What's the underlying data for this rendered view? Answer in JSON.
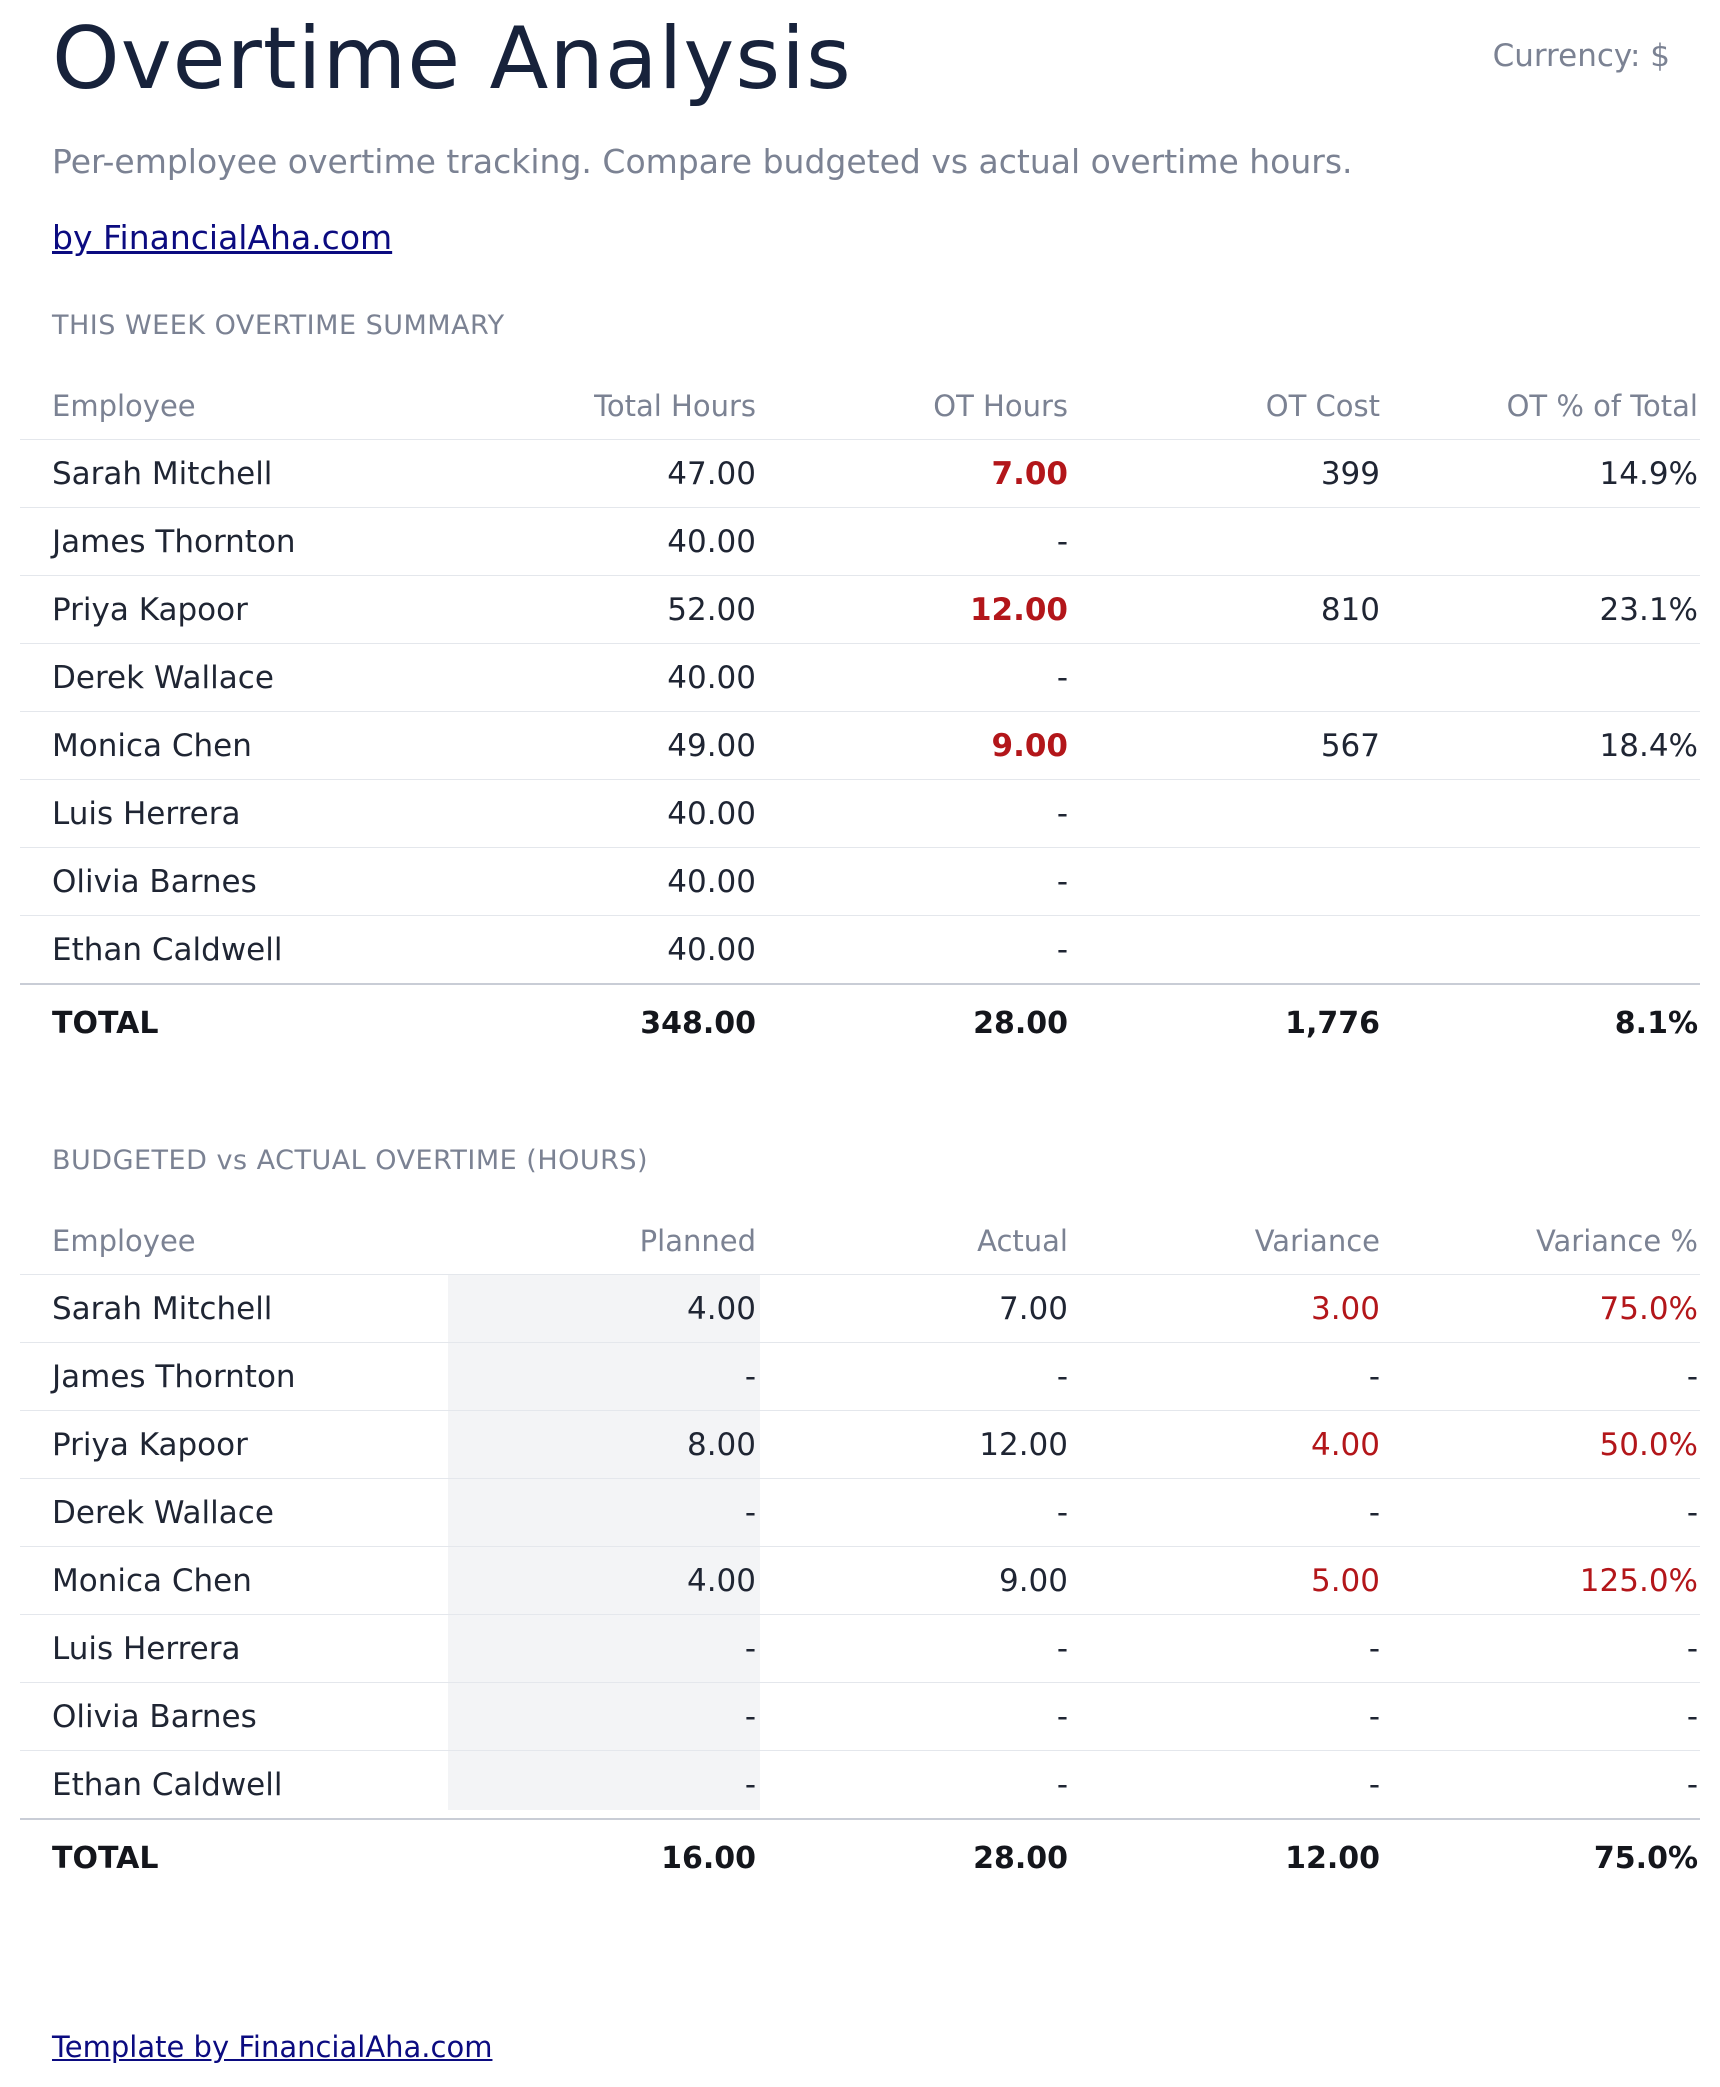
{
  "header": {
    "title": "Overtime Analysis",
    "currency": "Currency: $",
    "subtitle": "Per-employee overtime tracking. Compare budgeted vs actual overtime hours.",
    "byline": "by FinancialAha.com"
  },
  "summary": {
    "label": "THIS WEEK OVERTIME SUMMARY",
    "columns": [
      "Employee",
      "Total Hours",
      "OT Hours",
      "OT Cost",
      "OT % of Total"
    ],
    "rows": [
      {
        "name": "Sarah Mitchell",
        "total_hours": "47.00",
        "ot_hours": "7.00",
        "ot_cost": "399",
        "ot_pct": "14.9%"
      },
      {
        "name": "James Thornton",
        "total_hours": "40.00",
        "ot_hours": "-",
        "ot_cost": "",
        "ot_pct": ""
      },
      {
        "name": "Priya Kapoor",
        "total_hours": "52.00",
        "ot_hours": "12.00",
        "ot_cost": "810",
        "ot_pct": "23.1%"
      },
      {
        "name": "Derek Wallace",
        "total_hours": "40.00",
        "ot_hours": "-",
        "ot_cost": "",
        "ot_pct": ""
      },
      {
        "name": "Monica Chen",
        "total_hours": "49.00",
        "ot_hours": "9.00",
        "ot_cost": "567",
        "ot_pct": "18.4%"
      },
      {
        "name": "Luis Herrera",
        "total_hours": "40.00",
        "ot_hours": "-",
        "ot_cost": "",
        "ot_pct": ""
      },
      {
        "name": "Olivia Barnes",
        "total_hours": "40.00",
        "ot_hours": "-",
        "ot_cost": "",
        "ot_pct": ""
      },
      {
        "name": "Ethan Caldwell",
        "total_hours": "40.00",
        "ot_hours": "-",
        "ot_cost": "",
        "ot_pct": ""
      }
    ],
    "total": {
      "label": "TOTAL",
      "total_hours": "348.00",
      "ot_hours": "28.00",
      "ot_cost": "1,776",
      "ot_pct": "8.1%"
    }
  },
  "budget": {
    "label": "BUDGETED vs ACTUAL OVERTIME (HOURS)",
    "columns": [
      "Employee",
      "Planned",
      "Actual",
      "Variance",
      "Variance %"
    ],
    "rows": [
      {
        "name": "Sarah Mitchell",
        "planned": "4.00",
        "actual": "7.00",
        "variance": "3.00",
        "variance_pct": "75.0%"
      },
      {
        "name": "James Thornton",
        "planned": "-",
        "actual": "-",
        "variance": "-",
        "variance_pct": "-"
      },
      {
        "name": "Priya Kapoor",
        "planned": "8.00",
        "actual": "12.00",
        "variance": "4.00",
        "variance_pct": "50.0%"
      },
      {
        "name": "Derek Wallace",
        "planned": "-",
        "actual": "-",
        "variance": "-",
        "variance_pct": "-"
      },
      {
        "name": "Monica Chen",
        "planned": "4.00",
        "actual": "9.00",
        "variance": "5.00",
        "variance_pct": "125.0%"
      },
      {
        "name": "Luis Herrera",
        "planned": "-",
        "actual": "-",
        "variance": "-",
        "variance_pct": "-"
      },
      {
        "name": "Olivia Barnes",
        "planned": "-",
        "actual": "-",
        "variance": "-",
        "variance_pct": "-"
      },
      {
        "name": "Ethan Caldwell",
        "planned": "-",
        "actual": "-",
        "variance": "-",
        "variance_pct": "-"
      }
    ],
    "total": {
      "label": "TOTAL",
      "planned": "16.00",
      "actual": "28.00",
      "variance": "12.00",
      "variance_pct": "75.0%"
    }
  },
  "footer": {
    "link": "Template by FinancialAha.com"
  },
  "colors": {
    "title": "#17223b",
    "muted": "#7b8293",
    "link": "#0b0b80",
    "over_budget_red": "#b3161a",
    "planned_column_shade": "#f3f4f6"
  }
}
